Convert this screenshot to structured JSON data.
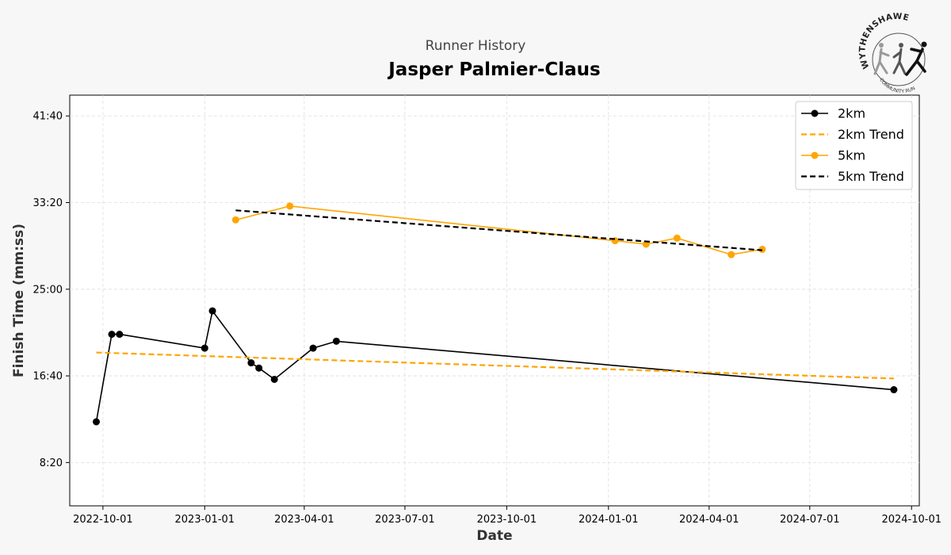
{
  "header": {
    "subtitle": "Runner History",
    "title": "Jasper Palmier-Claus"
  },
  "logo": {
    "arc_top": "WYTHENSHAWE",
    "arc_bottom": "COMMUNITY RUN"
  },
  "chart_data": {
    "type": "line",
    "xlabel": "Date",
    "ylabel": "Finish Time (mm:ss)",
    "x_axis": {
      "type": "date",
      "range": [
        "2022-09-01",
        "2024-10-08"
      ],
      "ticks": [
        "2022-10-01",
        "2023-01-01",
        "2023-04-01",
        "2023-07-01",
        "2023-10-01",
        "2024-01-01",
        "2024-04-01",
        "2024-07-01",
        "2024-10-01"
      ]
    },
    "y_axis": {
      "range": [
        "4:10",
        "43:40"
      ],
      "ticks": [
        "8:20",
        "16:40",
        "25:00",
        "33:20",
        "41:40"
      ]
    },
    "grid": true,
    "legend_position": "top-right",
    "series": [
      {
        "name": "2km",
        "color": "#000000",
        "style": "solid-markers",
        "points": [
          {
            "x": "2022-09-25",
            "y": "12:15"
          },
          {
            "x": "2022-10-09",
            "y": "20:40"
          },
          {
            "x": "2022-10-16",
            "y": "20:40"
          },
          {
            "x": "2023-01-01",
            "y": "19:20"
          },
          {
            "x": "2023-01-08",
            "y": "22:55"
          },
          {
            "x": "2023-02-12",
            "y": "17:55"
          },
          {
            "x": "2023-02-19",
            "y": "17:25"
          },
          {
            "x": "2023-03-05",
            "y": "16:20"
          },
          {
            "x": "2023-04-09",
            "y": "19:20"
          },
          {
            "x": "2023-04-30",
            "y": "20:00"
          },
          {
            "x": "2024-09-15",
            "y": "15:20"
          }
        ]
      },
      {
        "name": "2km Trend",
        "color": "#FFA500",
        "style": "dashed",
        "points": [
          {
            "x": "2022-09-25",
            "y": "18:55"
          },
          {
            "x": "2024-09-15",
            "y": "16:25"
          }
        ]
      },
      {
        "name": "5km",
        "color": "#FFA500",
        "style": "solid-markers",
        "points": [
          {
            "x": "2023-01-29",
            "y": "31:40"
          },
          {
            "x": "2023-03-19",
            "y": "33:00"
          },
          {
            "x": "2024-01-07",
            "y": "29:40"
          },
          {
            "x": "2024-02-04",
            "y": "29:20"
          },
          {
            "x": "2024-03-03",
            "y": "29:55"
          },
          {
            "x": "2024-04-21",
            "y": "28:20"
          },
          {
            "x": "2024-05-19",
            "y": "28:50"
          }
        ]
      },
      {
        "name": "5km Trend",
        "color": "#000000",
        "style": "dashed",
        "points": [
          {
            "x": "2023-01-29",
            "y": "32:35"
          },
          {
            "x": "2024-05-19",
            "y": "28:45"
          }
        ]
      }
    ]
  }
}
